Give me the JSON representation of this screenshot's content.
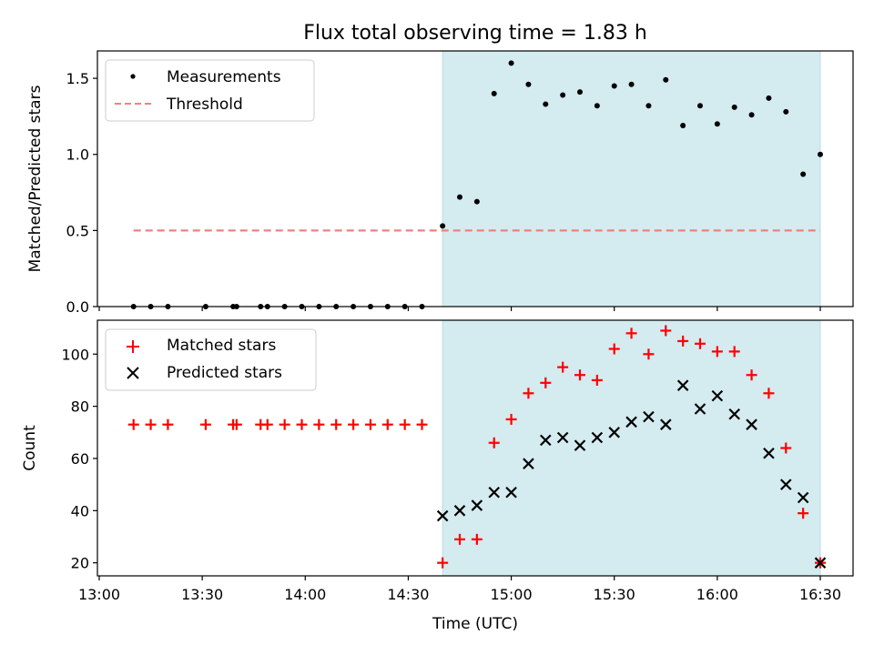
{
  "chart_data": [
    {
      "type": "scatter",
      "title": "Flux total observing time = 1.83 h",
      "ylabel": "Matched/Predicted stars",
      "xlabel": "",
      "xlim": [
        "13:00",
        "16:30"
      ],
      "ylim": [
        0,
        1.68
      ],
      "yticks": [
        "0.0",
        "0.5",
        "1.0",
        "1.5"
      ],
      "legend_position": "top-left",
      "shaded_region": {
        "from": "14:40",
        "to": "16:30",
        "color": "#add8e6"
      },
      "series": [
        {
          "name": "Measurements",
          "color": "#000000",
          "marker": "dot",
          "points": [
            [
              "13:10",
              0
            ],
            [
              "13:15",
              0
            ],
            [
              "13:20",
              0
            ],
            [
              "13:31",
              0
            ],
            [
              "13:39",
              0
            ],
            [
              "13:40",
              0
            ],
            [
              "13:47",
              0
            ],
            [
              "13:49",
              0
            ],
            [
              "13:54",
              0
            ],
            [
              "13:59",
              0
            ],
            [
              "14:04",
              0
            ],
            [
              "14:09",
              0
            ],
            [
              "14:14",
              0
            ],
            [
              "14:19",
              0
            ],
            [
              "14:24",
              0
            ],
            [
              "14:29",
              0
            ],
            [
              "14:34",
              0
            ],
            [
              "14:40",
              0.53
            ],
            [
              "14:45",
              0.72
            ],
            [
              "14:50",
              0.69
            ],
            [
              "14:55",
              1.4
            ],
            [
              "15:00",
              1.6
            ],
            [
              "15:05",
              1.46
            ],
            [
              "15:10",
              1.33
            ],
            [
              "15:15",
              1.39
            ],
            [
              "15:20",
              1.41
            ],
            [
              "15:25",
              1.32
            ],
            [
              "15:30",
              1.45
            ],
            [
              "15:35",
              1.46
            ],
            [
              "15:40",
              1.32
            ],
            [
              "15:45",
              1.49
            ],
            [
              "15:50",
              1.19
            ],
            [
              "15:55",
              1.32
            ],
            [
              "16:00",
              1.2
            ],
            [
              "16:05",
              1.31
            ],
            [
              "16:10",
              1.26
            ],
            [
              "16:15",
              1.37
            ],
            [
              "16:20",
              1.28
            ],
            [
              "16:25",
              0.87
            ],
            [
              "16:30",
              1.0
            ]
          ]
        },
        {
          "name": "Threshold",
          "color": "#f08080",
          "style": "dashed",
          "points": [
            [
              "13:10",
              0.5
            ],
            [
              "16:30",
              0.5
            ]
          ]
        }
      ]
    },
    {
      "type": "scatter",
      "title": "",
      "ylabel": "Count",
      "xlabel": "Time (UTC)",
      "xlim": [
        "13:00",
        "16:30"
      ],
      "ylim": [
        15,
        113
      ],
      "xticks": [
        "13:00",
        "13:30",
        "14:00",
        "14:30",
        "15:00",
        "15:30",
        "16:00",
        "16:30"
      ],
      "yticks": [
        "20",
        "40",
        "60",
        "80",
        "100"
      ],
      "legend_position": "top-left",
      "shaded_region": {
        "from": "14:40",
        "to": "16:30",
        "color": "#add8e6"
      },
      "series": [
        {
          "name": "Matched stars",
          "color": "#ff0000",
          "marker": "plus",
          "points": [
            [
              "13:10",
              73
            ],
            [
              "13:15",
              73
            ],
            [
              "13:20",
              73
            ],
            [
              "13:31",
              73
            ],
            [
              "13:39",
              73
            ],
            [
              "13:40",
              73
            ],
            [
              "13:47",
              73
            ],
            [
              "13:49",
              73
            ],
            [
              "13:54",
              73
            ],
            [
              "13:59",
              73
            ],
            [
              "14:04",
              73
            ],
            [
              "14:09",
              73
            ],
            [
              "14:14",
              73
            ],
            [
              "14:19",
              73
            ],
            [
              "14:24",
              73
            ],
            [
              "14:29",
              73
            ],
            [
              "14:34",
              73
            ],
            [
              "14:40",
              20
            ],
            [
              "14:45",
              29
            ],
            [
              "14:50",
              29
            ],
            [
              "14:55",
              66
            ],
            [
              "15:00",
              75
            ],
            [
              "15:05",
              85
            ],
            [
              "15:10",
              89
            ],
            [
              "15:15",
              95
            ],
            [
              "15:20",
              92
            ],
            [
              "15:25",
              90
            ],
            [
              "15:30",
              102
            ],
            [
              "15:35",
              108
            ],
            [
              "15:40",
              100
            ],
            [
              "15:45",
              109
            ],
            [
              "15:50",
              105
            ],
            [
              "15:55",
              104
            ],
            [
              "16:00",
              101
            ],
            [
              "16:05",
              101
            ],
            [
              "16:10",
              92
            ],
            [
              "16:15",
              85
            ],
            [
              "16:20",
              64
            ],
            [
              "16:25",
              39
            ],
            [
              "16:30",
              20
            ]
          ]
        },
        {
          "name": "Predicted stars",
          "color": "#000000",
          "marker": "x",
          "points": [
            [
              "14:40",
              38
            ],
            [
              "14:45",
              40
            ],
            [
              "14:50",
              42
            ],
            [
              "14:55",
              47
            ],
            [
              "15:00",
              47
            ],
            [
              "15:05",
              58
            ],
            [
              "15:10",
              67
            ],
            [
              "15:15",
              68
            ],
            [
              "15:20",
              65
            ],
            [
              "15:25",
              68
            ],
            [
              "15:30",
              70
            ],
            [
              "15:35",
              74
            ],
            [
              "15:40",
              76
            ],
            [
              "15:45",
              73
            ],
            [
              "15:50",
              88
            ],
            [
              "15:55",
              79
            ],
            [
              "16:00",
              84
            ],
            [
              "16:05",
              77
            ],
            [
              "16:10",
              73
            ],
            [
              "16:15",
              62
            ],
            [
              "16:20",
              50
            ],
            [
              "16:25",
              45
            ],
            [
              "16:30",
              20
            ]
          ]
        }
      ]
    }
  ]
}
